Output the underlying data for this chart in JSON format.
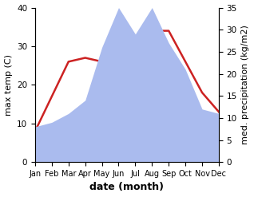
{
  "months": [
    "Jan",
    "Feb",
    "Mar",
    "Apr",
    "May",
    "Jun",
    "Jul",
    "Aug",
    "Sep",
    "Oct",
    "Nov",
    "Dec"
  ],
  "temperature": [
    8,
    17,
    26,
    27,
    26,
    27,
    30,
    34,
    34,
    26,
    18,
    13
  ],
  "precipitation": [
    8,
    9,
    11,
    14,
    26,
    35,
    29,
    35,
    27,
    21,
    12,
    11
  ],
  "temp_color": "#cc2222",
  "precip_color": "#aabbee",
  "ylabel_left": "max temp (C)",
  "ylabel_right": "med. precipitation (kg/m2)",
  "xlabel": "date (month)",
  "ylim_left": [
    0,
    40
  ],
  "ylim_right": [
    0,
    35
  ],
  "yticks_left": [
    0,
    10,
    20,
    30,
    40
  ],
  "yticks_right": [
    0,
    5,
    10,
    15,
    20,
    25,
    30,
    35
  ],
  "bg_color": "#ffffff",
  "line_width": 1.8,
  "xlabel_fontsize": 9,
  "ylabel_fontsize": 8
}
